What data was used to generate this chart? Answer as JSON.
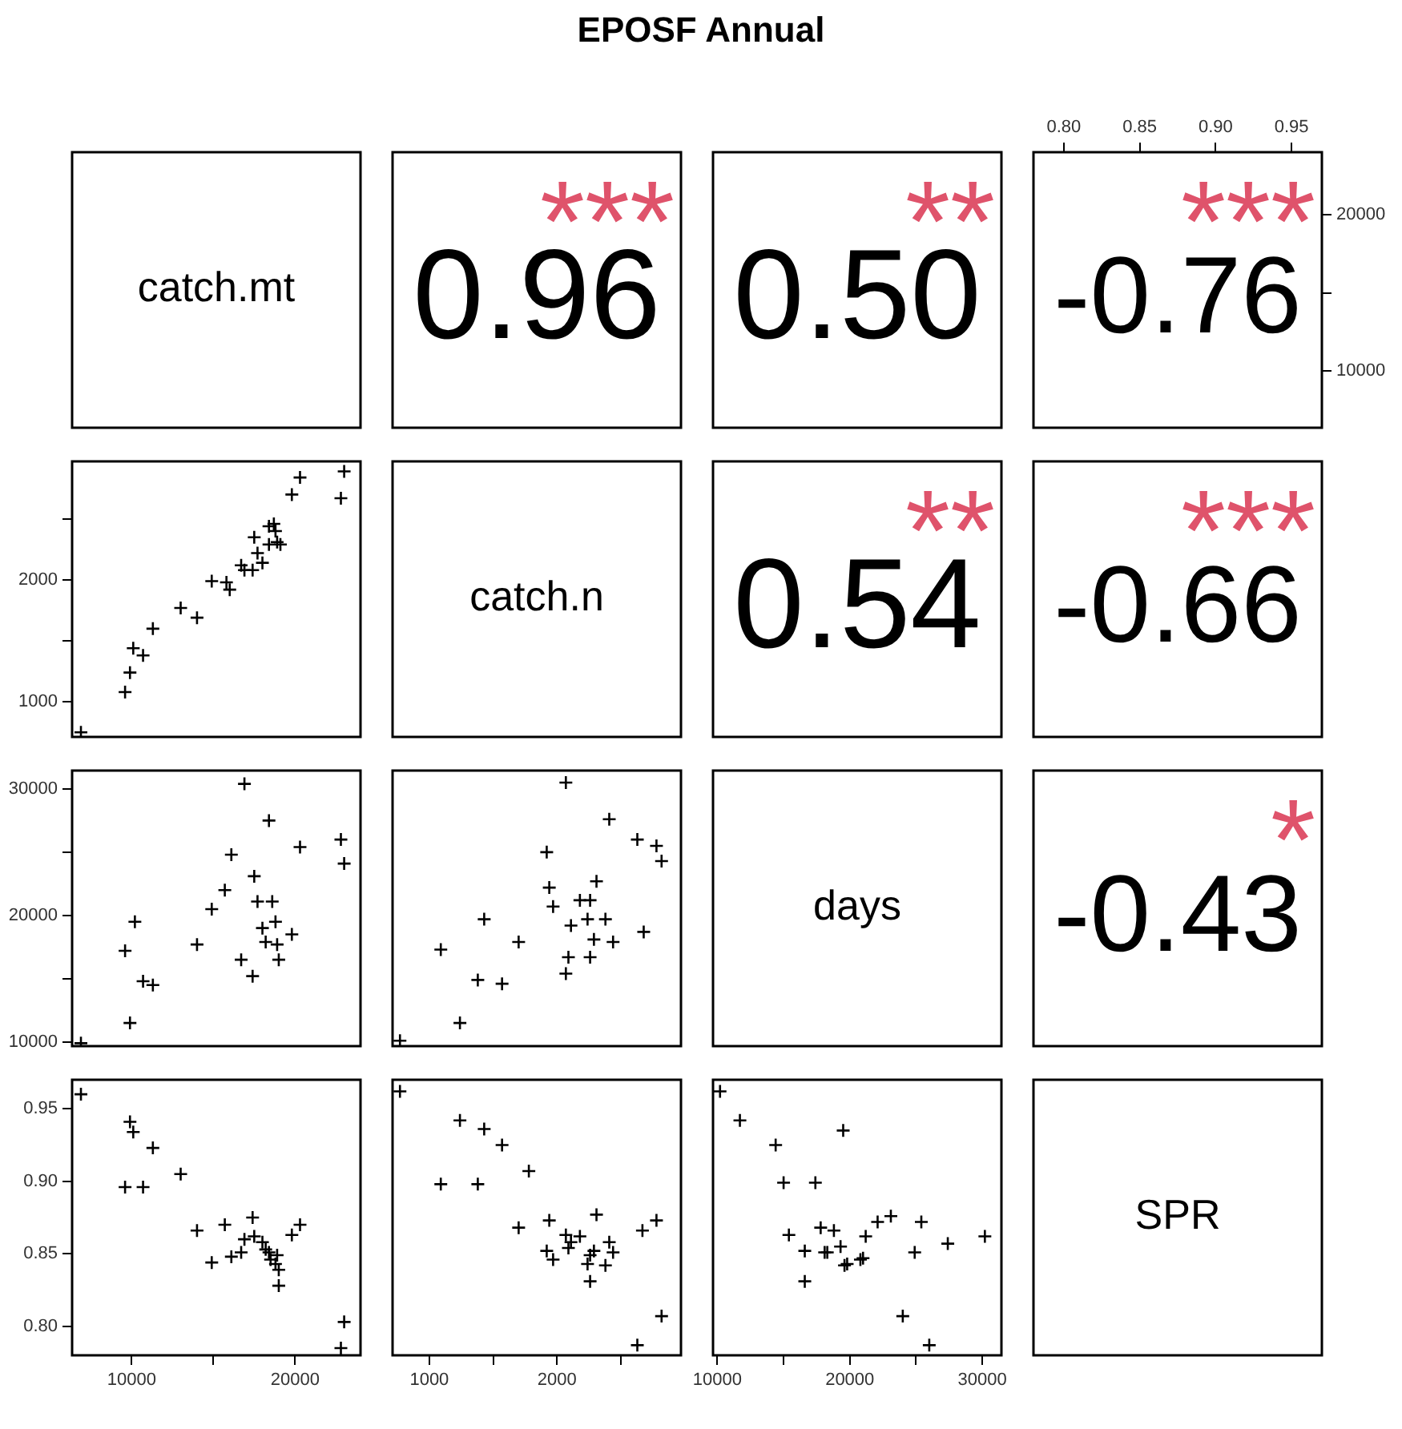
{
  "chart_data": [
    {
      "type": "other",
      "title": "EPOSF Annual",
      "annotations": [
        "catch.mt"
      ]
    },
    {
      "type": "other",
      "annotations": [
        "0.96",
        "***"
      ]
    },
    {
      "type": "other",
      "annotations": [
        "0.50",
        "**"
      ]
    },
    {
      "type": "scatter",
      "annotations": [
        "-0.76",
        "***"
      ],
      "xlim": [
        0.78,
        0.97
      ],
      "xticks": [
        {
          "value": 0.8,
          "label": "0.80"
        },
        0.85,
        {
          "value": 0.9,
          "label": "0.90"
        },
        0.95
      ],
      "ylim": [
        6360,
        24000
      ],
      "yticks": [
        10000,
        {
          "value": 15000,
          "label": null
        },
        20000
      ]
    },
    {
      "type": "scatter",
      "marker": "cross",
      "color": "#000000",
      "xlim": [
        6360,
        24000
      ],
      "ylim": [
        712,
        2972
      ],
      "yticks": [
        1000,
        {
          "value": 1500,
          "label": null
        },
        2000,
        {
          "value": 2500,
          "label": null
        }
      ],
      "tick_labels": "y",
      "x": [
        6900,
        9600,
        9900,
        10100,
        10700,
        11300,
        13000,
        14000,
        14900,
        15800,
        16000,
        16700,
        16900,
        17400,
        17500,
        17700,
        18000,
        18400,
        18400,
        18700,
        18800,
        18900,
        19100,
        19800,
        20300,
        22800,
        23000
      ],
      "values": [
        750,
        1080,
        1240,
        1440,
        1380,
        1600,
        1770,
        1690,
        1990,
        1980,
        1920,
        2120,
        2080,
        2080,
        2350,
        2220,
        2140,
        2440,
        2290,
        2460,
        2400,
        2310,
        2290,
        2700,
        2840,
        2670,
        2890
      ]
    },
    {
      "type": "other",
      "annotations": [
        "catch.n"
      ]
    },
    {
      "type": "other",
      "annotations": [
        "0.54",
        "**"
      ]
    },
    {
      "type": "other",
      "annotations": [
        "-0.66",
        "***"
      ]
    },
    {
      "type": "scatter",
      "marker": "cross",
      "color": "#000000",
      "xlim": [
        6360,
        24000
      ],
      "ylim": [
        9670,
        31450
      ],
      "yticks": [
        10000,
        {
          "value": 15000,
          "label": null
        },
        20000,
        {
          "value": 25000,
          "label": null
        },
        30000
      ],
      "tick_labels": "y",
      "x": [
        6900,
        9900,
        9600,
        10200,
        10700,
        11300,
        14000,
        14900,
        15700,
        16100,
        16700,
        16900,
        17400,
        17500,
        17700,
        18000,
        18200,
        18400,
        18600,
        18800,
        18900,
        19000,
        19800,
        20300,
        22800,
        23000
      ],
      "values": [
        9900,
        11500,
        17200,
        19500,
        14800,
        14500,
        17700,
        20500,
        22000,
        24800,
        16500,
        30400,
        15200,
        23100,
        21100,
        19000,
        17900,
        27500,
        21100,
        19500,
        17700,
        16500,
        18500,
        25400,
        26000,
        24100
      ]
    },
    {
      "type": "scatter",
      "marker": "cross",
      "color": "#000000",
      "xlim": [
        712,
        2972
      ],
      "ylim": [
        9670,
        31450
      ],
      "tick_labels": false,
      "x": [
        770,
        1240,
        1090,
        1380,
        1570,
        1430,
        1700,
        1920,
        1940,
        1970,
        2070,
        2090,
        2070,
        2110,
        2180,
        2260,
        2240,
        2260,
        2310,
        2290,
        2380,
        2410,
        2440,
        2630,
        2680,
        2780,
        2820
      ],
      "values": [
        10100,
        11500,
        17300,
        14900,
        14600,
        19700,
        17900,
        25000,
        22200,
        20700,
        30500,
        16700,
        15400,
        19200,
        21200,
        21200,
        19700,
        16700,
        22700,
        18100,
        19700,
        27600,
        17900,
        26000,
        18700,
        25500,
        24300
      ]
    },
    {
      "type": "other",
      "annotations": [
        "days"
      ]
    },
    {
      "type": "other",
      "annotations": [
        "-0.43",
        "*"
      ]
    },
    {
      "type": "scatter",
      "marker": "cross",
      "color": "#000000",
      "xlim": [
        6360,
        24000
      ],
      "xticks": [
        10000,
        {
          "value": 15000,
          "label": null
        },
        20000
      ],
      "ylim": [
        0.78,
        0.97
      ],
      "yticks": [
        {
          "value": 0.8,
          "label": "0.80"
        },
        0.85,
        {
          "value": 0.9,
          "label": "0.90"
        },
        0.95
      ],
      "x": [
        6900,
        9900,
        10100,
        11300,
        9600,
        10700,
        13000,
        14000,
        14900,
        15700,
        16100,
        16700,
        16900,
        17400,
        17500,
        18000,
        18200,
        18400,
        18500,
        18800,
        18900,
        19000,
        19000,
        19800,
        20300,
        23000,
        22800
      ],
      "values": [
        0.96,
        0.941,
        0.934,
        0.923,
        0.896,
        0.896,
        0.905,
        0.866,
        0.844,
        0.87,
        0.848,
        0.851,
        0.86,
        0.875,
        0.862,
        0.858,
        0.853,
        0.851,
        0.846,
        0.843,
        0.849,
        0.839,
        0.828,
        0.863,
        0.87,
        0.803,
        0.785
      ]
    },
    {
      "type": "scatter",
      "marker": "cross",
      "color": "#000000",
      "xlim": [
        712,
        2972
      ],
      "xticks": [
        1000,
        {
          "value": 1500,
          "label": null
        },
        2000,
        {
          "value": 2500,
          "label": null
        }
      ],
      "ylim": [
        0.78,
        0.97
      ],
      "tick_labels": "x",
      "x": [
        770,
        1240,
        1430,
        1570,
        1780,
        1090,
        1380,
        1700,
        1940,
        1920,
        1970,
        2070,
        2090,
        2110,
        2180,
        2310,
        2260,
        2290,
        2240,
        2260,
        2380,
        2410,
        2440,
        2670,
        2780,
        2820,
        2630
      ],
      "values": [
        0.962,
        0.942,
        0.936,
        0.925,
        0.907,
        0.898,
        0.898,
        0.868,
        0.873,
        0.852,
        0.846,
        0.863,
        0.854,
        0.858,
        0.862,
        0.877,
        0.849,
        0.852,
        0.843,
        0.831,
        0.842,
        0.858,
        0.851,
        0.866,
        0.873,
        0.807,
        0.787
      ]
    },
    {
      "type": "scatter",
      "marker": "cross",
      "color": "#000000",
      "xlim": [
        9670,
        31450
      ],
      "xticks": [
        10000,
        {
          "value": 15000,
          "label": null
        },
        20000,
        {
          "value": 25000,
          "label": null
        },
        30000
      ],
      "ylim": [
        0.78,
        0.97
      ],
      "tick_labels": "x",
      "x": [
        10200,
        11700,
        14400,
        19500,
        15000,
        17400,
        15400,
        17800,
        18800,
        16600,
        18100,
        18300,
        19300,
        19600,
        19800,
        16600,
        20800,
        21000,
        21200,
        22100,
        23100,
        25400,
        24900,
        27400,
        30200,
        24000,
        26000
      ],
      "values": [
        0.962,
        0.942,
        0.925,
        0.935,
        0.899,
        0.899,
        0.863,
        0.868,
        0.866,
        0.852,
        0.851,
        0.851,
        0.855,
        0.842,
        0.843,
        0.831,
        0.846,
        0.847,
        0.862,
        0.872,
        0.876,
        0.872,
        0.851,
        0.857,
        0.862,
        0.807,
        0.787
      ]
    },
    {
      "type": "other",
      "annotations": [
        "SPR"
      ]
    }
  ]
}
